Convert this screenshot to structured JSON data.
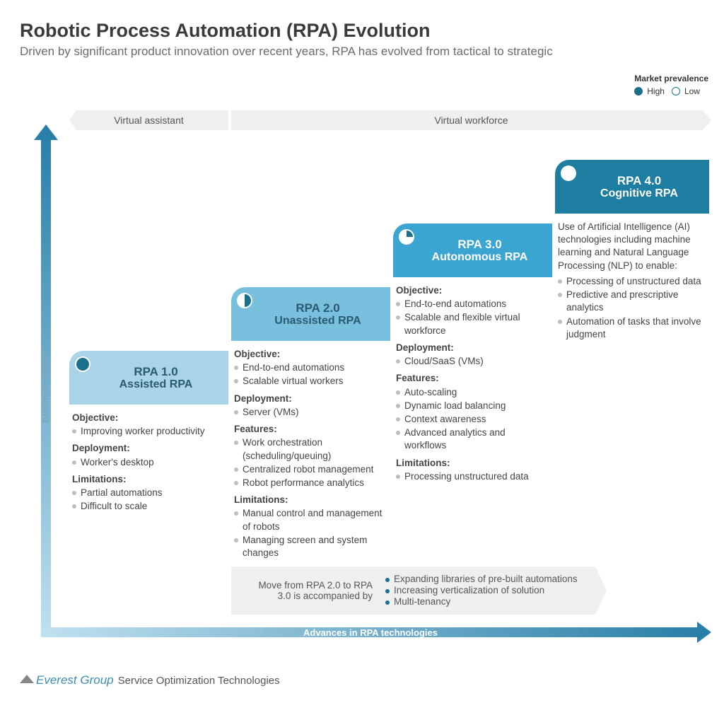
{
  "title": "Robotic Process Automation (RPA) Evolution",
  "subtitle": "Driven by significant product innovation over recent years, RPA has evolved from tactical to strategic",
  "legend": {
    "title": "Market prevalence",
    "high": "High",
    "low": "Low"
  },
  "headers": {
    "left": "Virtual assistant",
    "right": "Virtual workforce"
  },
  "axes": {
    "y": "Business impact",
    "x": "Advances in RPA technologies"
  },
  "colors": {
    "c1": "#a9d3e6",
    "c2": "#78c0dd",
    "c3": "#3ba5d1",
    "c4": "#1d7ea1",
    "indicator_fill": "#1a6f8b"
  },
  "stages": [
    {
      "title": "RPA 1.0",
      "sub": "Assisted RPA",
      "prevalence": 1.0,
      "sections": [
        {
          "h": "Objective:",
          "items": [
            "Improving worker productivity"
          ]
        },
        {
          "h": "Deployment:",
          "items": [
            "Worker's desktop"
          ]
        },
        {
          "h": "Limitations:",
          "items": [
            "Partial automations",
            "Difficult to scale"
          ]
        }
      ]
    },
    {
      "title": "RPA 2.0",
      "sub": "Unassisted RPA",
      "prevalence": 0.5,
      "sections": [
        {
          "h": "Objective:",
          "items": [
            "End-to-end automations",
            "Scalable virtual workers"
          ]
        },
        {
          "h": "Deployment:",
          "items": [
            "Server (VMs)"
          ]
        },
        {
          "h": "Features:",
          "items": [
            "Work orchestration (scheduling/queuing)",
            "Centralized robot management",
            "Robot performance analytics"
          ]
        },
        {
          "h": "Limitations:",
          "items": [
            "Manual control and management of robots",
            "Managing screen and system changes"
          ]
        }
      ]
    },
    {
      "title": "RPA 3.0",
      "sub": "Autonomous RPA",
      "prevalence": 0.25,
      "sections": [
        {
          "h": "Objective:",
          "items": [
            "End-to-end automations",
            "Scalable and flexible virtual workforce"
          ]
        },
        {
          "h": "Deployment:",
          "items": [
            "Cloud/SaaS (VMs)"
          ]
        },
        {
          "h": "Features:",
          "items": [
            "Auto-scaling",
            "Dynamic load balancing",
            "Context awareness",
            "Advanced analytics and workflows"
          ]
        },
        {
          "h": "Limitations:",
          "items": [
            "Processing unstructured data"
          ]
        }
      ]
    },
    {
      "title": "RPA 4.0",
      "sub": "Cognitive RPA",
      "prevalence": 0.0,
      "desc": "Use of Artificial Intelligence (AI) technologies including machine learning and Natural Language Processing (NLP) to enable:",
      "items": [
        "Processing of unstructured data",
        "Predictive and prescriptive analytics",
        "Automation of tasks that involve judgment"
      ]
    }
  ],
  "note": {
    "left": "Move from RPA 2.0 to RPA 3.0 is accompanied by",
    "items": [
      "Expanding libraries of pre-built automations",
      "Increasing verticalization of solution",
      "Multi-tenancy"
    ]
  },
  "branding": {
    "logo": "Everest Group",
    "sub": "Service Optimization Technologies"
  }
}
